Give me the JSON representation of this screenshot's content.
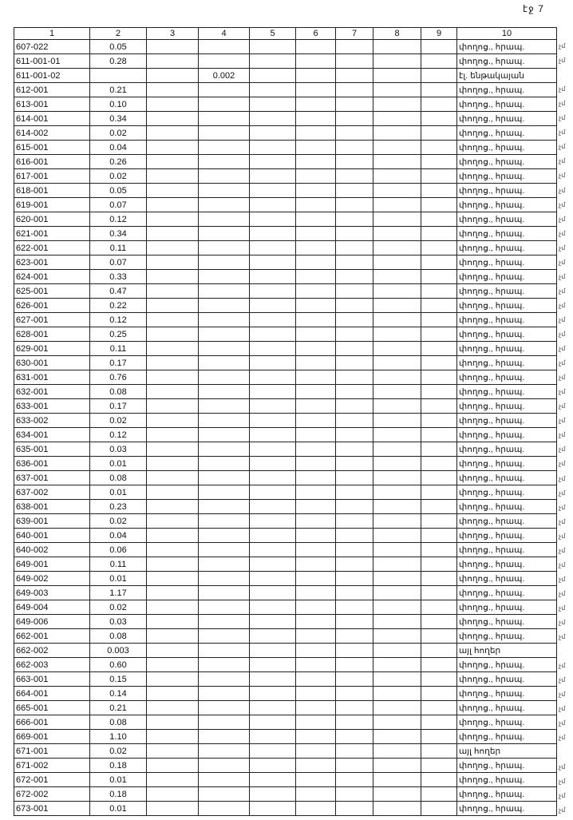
{
  "page_number": "էջ 7",
  "headers": [
    "1",
    "2",
    "3",
    "4",
    "5",
    "6",
    "7",
    "8",
    "9",
    "10"
  ],
  "rows": [
    {
      "id": "607-022",
      "c2": "0.05",
      "c4": "",
      "c10": "փողոց., հրապ.",
      "mark": "չմ"
    },
    {
      "id": "611-001-01",
      "c2": "0.28",
      "c4": "",
      "c10": "փողոց., հրապ.",
      "mark": "չմ"
    },
    {
      "id": "611-001-02",
      "c2": "",
      "c4": "0.002",
      "c10": "էլ. ենթակայան",
      "mark": ""
    },
    {
      "id": "612-001",
      "c2": "0.21",
      "c4": "",
      "c10": "փողոց., հրապ.",
      "mark": "չմ"
    },
    {
      "id": "613-001",
      "c2": "0.10",
      "c4": "",
      "c10": "փողոց., հրապ.",
      "mark": "չմ"
    },
    {
      "id": "614-001",
      "c2": "0.34",
      "c4": "",
      "c10": "փողոց., հրապ.",
      "mark": "չմ"
    },
    {
      "id": "614-002",
      "c2": "0.02",
      "c4": "",
      "c10": "փողոց., հրապ.",
      "mark": "չմ"
    },
    {
      "id": "615-001",
      "c2": "0.04",
      "c4": "",
      "c10": "փողոց., հրապ.",
      "mark": "չմ"
    },
    {
      "id": "616-001",
      "c2": "0.26",
      "c4": "",
      "c10": "փողոց., հրապ.",
      "mark": "չմ"
    },
    {
      "id": "617-001",
      "c2": "0.02",
      "c4": "",
      "c10": "փողոց., հրապ.",
      "mark": "չմ"
    },
    {
      "id": "618-001",
      "c2": "0.05",
      "c4": "",
      "c10": "փողոց., հրապ.",
      "mark": "չմ"
    },
    {
      "id": "619-001",
      "c2": "0.07",
      "c4": "",
      "c10": "փողոց., հրապ.",
      "mark": "չմ"
    },
    {
      "id": "620-001",
      "c2": "0.12",
      "c4": "",
      "c10": "փողոց., հրապ.",
      "mark": "չմ"
    },
    {
      "id": "621-001",
      "c2": "0.34",
      "c4": "",
      "c10": "փողոց., հրապ.",
      "mark": "չմ"
    },
    {
      "id": "622-001",
      "c2": "0.11",
      "c4": "",
      "c10": "փողոց., հրապ.",
      "mark": "չմ"
    },
    {
      "id": "623-001",
      "c2": "0.07",
      "c4": "",
      "c10": "փողոց., հրապ.",
      "mark": "չմ"
    },
    {
      "id": "624-001",
      "c2": "0.33",
      "c4": "",
      "c10": "փողոց., հրապ.",
      "mark": "չմ"
    },
    {
      "id": "625-001",
      "c2": "0.47",
      "c4": "",
      "c10": "փողոց., հրապ.",
      "mark": "չմ"
    },
    {
      "id": "626-001",
      "c2": "0.22",
      "c4": "",
      "c10": "փողոց., հրապ.",
      "mark": "չմ"
    },
    {
      "id": "627-001",
      "c2": "0.12",
      "c4": "",
      "c10": "փողոց., հրապ.",
      "mark": "չմ"
    },
    {
      "id": "628-001",
      "c2": "0.25",
      "c4": "",
      "c10": "փողոց., հրապ.",
      "mark": "չմ"
    },
    {
      "id": "629-001",
      "c2": "0.11",
      "c4": "",
      "c10": "փողոց., հրապ.",
      "mark": "չմ"
    },
    {
      "id": "630-001",
      "c2": "0.17",
      "c4": "",
      "c10": "փողոց., հրապ.",
      "mark": "չմ"
    },
    {
      "id": "631-001",
      "c2": "0.76",
      "c4": "",
      "c10": "փողոց., հրապ.",
      "mark": "չմ"
    },
    {
      "id": "632-001",
      "c2": "0.08",
      "c4": "",
      "c10": "փողոց., հրապ.",
      "mark": "չմ"
    },
    {
      "id": "633-001",
      "c2": "0.17",
      "c4": "",
      "c10": "փողոց., հրապ.",
      "mark": "չմ"
    },
    {
      "id": "633-002",
      "c2": "0.02",
      "c4": "",
      "c10": "փողոց., հրապ.",
      "mark": "չմ"
    },
    {
      "id": "634-001",
      "c2": "0.12",
      "c4": "",
      "c10": "փողոց., հրապ.",
      "mark": "չմ"
    },
    {
      "id": "635-001",
      "c2": "0.03",
      "c4": "",
      "c10": "փողոց., հրապ.",
      "mark": "չմ"
    },
    {
      "id": "636-001",
      "c2": "0.01",
      "c4": "",
      "c10": "փողոց., հրապ.",
      "mark": "չմ"
    },
    {
      "id": "637-001",
      "c2": "0.08",
      "c4": "",
      "c10": "փողոց., հրապ.",
      "mark": "չմ"
    },
    {
      "id": "637-002",
      "c2": "0.01",
      "c4": "",
      "c10": "փողոց., հրապ.",
      "mark": "չմ"
    },
    {
      "id": "638-001",
      "c2": "0.23",
      "c4": "",
      "c10": "փողոց., հրապ.",
      "mark": "չմ"
    },
    {
      "id": "639-001",
      "c2": "0.02",
      "c4": "",
      "c10": "փողոց., հրապ.",
      "mark": "չմ"
    },
    {
      "id": "640-001",
      "c2": "0.04",
      "c4": "",
      "c10": "փողոց., հրապ.",
      "mark": "չմ"
    },
    {
      "id": "640-002",
      "c2": "0.06",
      "c4": "",
      "c10": "փողոց., հրապ.",
      "mark": "չմ"
    },
    {
      "id": "649-001",
      "c2": "0.11",
      "c4": "",
      "c10": "փողոց., հրապ.",
      "mark": "չմ"
    },
    {
      "id": "649-002",
      "c2": "0.01",
      "c4": "",
      "c10": "փողոց., հրապ.",
      "mark": "չմ"
    },
    {
      "id": "649-003",
      "c2": "1.17",
      "c4": "",
      "c10": "փողոց., հրապ.",
      "mark": "չմ"
    },
    {
      "id": "649-004",
      "c2": "0.02",
      "c4": "",
      "c10": "փողոց., հրապ.",
      "mark": "չմ"
    },
    {
      "id": "649-006",
      "c2": "0.03",
      "c4": "",
      "c10": "փողոց., հրապ.",
      "mark": "չմ"
    },
    {
      "id": "662-001",
      "c2": "0.08",
      "c4": "",
      "c10": "փողոց., հրապ.",
      "mark": "չմ"
    },
    {
      "id": "662-002",
      "c2": "0.003",
      "c4": "",
      "c10": "այլ հողեր",
      "mark": ""
    },
    {
      "id": "662-003",
      "c2": "0.60",
      "c4": "",
      "c10": "փողոց., հրապ.",
      "mark": "չմ"
    },
    {
      "id": "663-001",
      "c2": "0.15",
      "c4": "",
      "c10": "փողոց., հրապ.",
      "mark": "չմ"
    },
    {
      "id": "664-001",
      "c2": "0.14",
      "c4": "",
      "c10": "փողոց., հրապ.",
      "mark": "չմ"
    },
    {
      "id": "665-001",
      "c2": "0.21",
      "c4": "",
      "c10": "փողոց., հրապ.",
      "mark": "չմ"
    },
    {
      "id": "666-001",
      "c2": "0.08",
      "c4": "",
      "c10": "փողոց., հրապ.",
      "mark": "չմ"
    },
    {
      "id": "669-001",
      "c2": "1.10",
      "c4": "",
      "c10": "փողոց., հրապ.",
      "mark": "չմ"
    },
    {
      "id": "671-001",
      "c2": "0.02",
      "c4": "",
      "c10": "այլ հողեր",
      "mark": ""
    },
    {
      "id": "671-002",
      "c2": "0.18",
      "c4": "",
      "c10": "փողոց., հրապ.",
      "mark": "չմ"
    },
    {
      "id": "672-001",
      "c2": "0.01",
      "c4": "",
      "c10": "փողոց., հրապ.",
      "mark": "չմ"
    },
    {
      "id": "672-002",
      "c2": "0.18",
      "c4": "",
      "c10": "փողոց., հրապ.",
      "mark": "չմ"
    },
    {
      "id": "673-001",
      "c2": "0.01",
      "c4": "",
      "c10": "փողոց., հրապ.",
      "mark": "չմ"
    }
  ]
}
